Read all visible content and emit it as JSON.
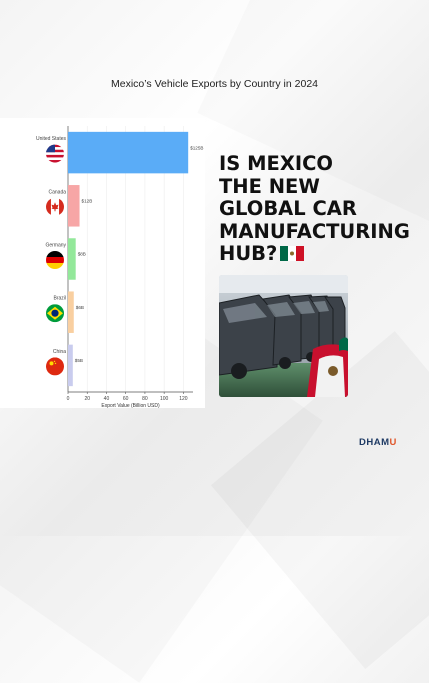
{
  "chart_data": {
    "type": "bar",
    "orientation": "horizontal",
    "title": "Mexico’s Vehicle Exports by Country in 2024",
    "xlabel": "Export Value (Billion USD)",
    "ylabel": "",
    "xlim": [
      0,
      130
    ],
    "xticks": [
      0,
      20,
      40,
      60,
      80,
      100,
      120
    ],
    "grid": true,
    "categories": [
      "United States",
      "Canada",
      "Germany",
      "Brazil",
      "China"
    ],
    "values": [
      125,
      12,
      8,
      6,
      5
    ],
    "value_labels": [
      "$125B",
      "$12B",
      "$8B",
      "$6B",
      "$5B"
    ],
    "bar_colors": [
      "#5aacf7",
      "#f7a6a6",
      "#93e89a",
      "#f9cfa0",
      "#c9ccee"
    ],
    "flags": [
      "us-flag-icon",
      "canada-flag-icon",
      "germany-flag-icon",
      "brazil-flag-icon",
      "china-flag-icon"
    ]
  },
  "headline": {
    "lines": [
      "IS MEXICO",
      "THE NEW",
      "GLOBAL CAR",
      "MANUFACTURING",
      "HUB?"
    ],
    "flag_icon": "mexico-flag-icon"
  },
  "photo": {
    "icon": "car-assembly-line-photo"
  },
  "brand": {
    "prefix": "DHAM",
    "accent": "U",
    "accent_color": "#e0562a"
  }
}
